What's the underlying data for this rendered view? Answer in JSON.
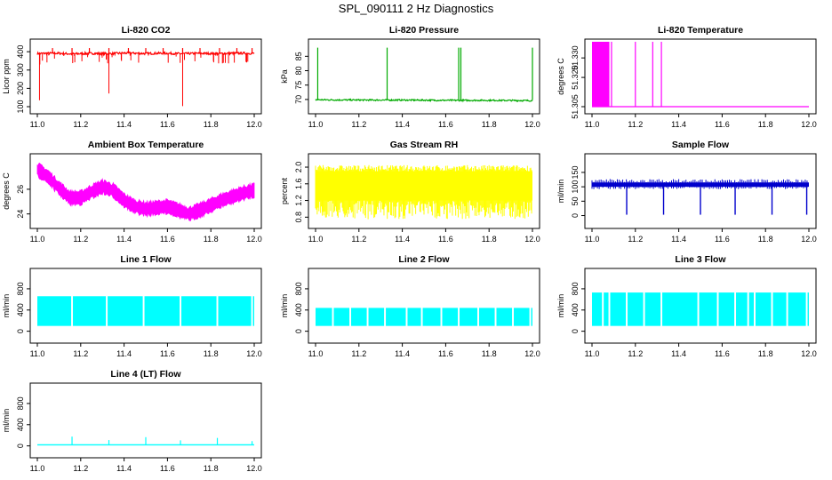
{
  "page": {
    "title": "SPL_090111  2 Hz Diagnostics"
  },
  "chart_data": [
    {
      "id": "co2",
      "type": "line",
      "title": "Li-820 CO2",
      "xlabel": "",
      "ylabel": "Licor ppm",
      "xlim": [
        11.0,
        12.0
      ],
      "ylim": [
        100,
        430
      ],
      "x_ticks": [
        "11.0",
        "11.2",
        "11.4",
        "11.6",
        "11.8",
        "12.0"
      ],
      "y_ticks": [
        100,
        200,
        300,
        400
      ],
      "color": "#ff0000",
      "series": [
        {
          "name": "CO2",
          "x": [
            11.0,
            11.08,
            11.16,
            11.24,
            11.33,
            11.42,
            11.5,
            11.58,
            11.67,
            11.75,
            11.84,
            11.92,
            12.0
          ],
          "y": [
            390,
            392,
            388,
            391,
            389,
            393,
            390,
            392,
            389,
            391,
            390,
            392,
            391
          ]
        }
      ],
      "spikes_up": [
        11.07,
        11.16,
        11.24,
        11.33,
        11.42,
        11.5,
        11.58,
        11.67,
        11.75,
        11.84,
        11.92,
        11.99
      ],
      "spike_up_top": 420,
      "spikes_down": [
        {
          "x": 11.01,
          "y": 135
        },
        {
          "x": 11.33,
          "y": 172
        },
        {
          "x": 11.67,
          "y": 103
        }
      ]
    },
    {
      "id": "pressure",
      "type": "line",
      "title": "Li-820 Pressure",
      "xlabel": "",
      "ylabel": "kPa",
      "xlim": [
        11.0,
        12.0
      ],
      "ylim": [
        67.5,
        88.5
      ],
      "x_ticks": [
        "11.0",
        "11.2",
        "11.4",
        "11.6",
        "11.8",
        "12.0"
      ],
      "y_ticks": [
        70,
        75,
        80,
        85
      ],
      "color": "#00aa00",
      "series": [
        {
          "name": "Pressure",
          "x": [
            11.0,
            11.2,
            11.4,
            11.6,
            11.8,
            12.0
          ],
          "y": [
            69.9,
            69.8,
            69.8,
            69.7,
            69.7,
            69.6
          ]
        }
      ],
      "spikes_up": [
        11.01,
        11.33,
        11.66,
        11.67,
        12.0
      ],
      "spike_up_top": 88
    },
    {
      "id": "temperature",
      "type": "line",
      "title": "Li-820 Temperature",
      "xlabel": "",
      "ylabel": "degrees C",
      "xlim": [
        11.0,
        12.0
      ],
      "ylim": [
        51.305,
        51.336
      ],
      "x_ticks": [
        "11.0",
        "11.2",
        "11.4",
        "11.6",
        "11.8",
        "12.0"
      ],
      "y_ticks": [
        "51.305",
        "51.320",
        "51.330"
      ],
      "y_tick_values": [
        51.305,
        51.32,
        51.33
      ],
      "color": "#ff00ff",
      "baseline": 51.305,
      "dense_region": [
        11.0,
        11.08
      ],
      "spikes_up": [
        11.09,
        11.2,
        11.28,
        11.32
      ],
      "spike_up_top": 51.336
    },
    {
      "id": "box_temp",
      "type": "line",
      "title": "Ambient Box Temperature",
      "xlabel": "",
      "ylabel": "degrees C",
      "xlim": [
        11.0,
        12.0
      ],
      "ylim": [
        23.4,
        28.3
      ],
      "x_ticks": [
        "11.0",
        "11.2",
        "11.4",
        "11.6",
        "11.8",
        "12.0"
      ],
      "y_ticks": [
        24,
        26
      ],
      "color": "#ff00ff",
      "band": 1.0,
      "series": [
        {
          "name": "Box temp",
          "x": [
            11.0,
            11.05,
            11.1,
            11.15,
            11.2,
            11.25,
            11.3,
            11.35,
            11.4,
            11.45,
            11.5,
            11.55,
            11.6,
            11.65,
            11.7,
            11.75,
            11.8,
            11.85,
            11.9,
            11.95,
            12.0
          ],
          "y": [
            27.6,
            27.0,
            26.1,
            25.3,
            25.3,
            25.8,
            26.2,
            25.9,
            25.1,
            24.6,
            24.4,
            24.5,
            24.6,
            24.3,
            24.0,
            24.3,
            24.7,
            25.1,
            25.4,
            25.7,
            25.9
          ]
        }
      ]
    },
    {
      "id": "rh",
      "type": "line",
      "title": "Gas Stream RH",
      "xlabel": "",
      "ylabel": "percent",
      "xlim": [
        11.0,
        12.0
      ],
      "ylim": [
        0.7,
        2.15
      ],
      "x_ticks": [
        "11.0",
        "11.2",
        "11.4",
        "11.6",
        "11.8",
        "12.0"
      ],
      "y_ticks": [
        "0.8",
        "1.2",
        "1.6",
        "2.0"
      ],
      "y_tick_values": [
        0.8,
        1.2,
        1.6,
        2.0
      ],
      "color": "#ffff00",
      "band_low": 1.2,
      "band_high": 1.9,
      "noise_low": 0.75,
      "noise_high": 2.05
    },
    {
      "id": "sample_flow",
      "type": "line",
      "title": "Sample Flow",
      "xlabel": "",
      "ylabel": "ml/min",
      "xlim": [
        11.0,
        12.0
      ],
      "ylim": [
        -20,
        190
      ],
      "x_ticks": [
        "11.0",
        "11.2",
        "11.4",
        "11.6",
        "11.8",
        "12.0"
      ],
      "y_ticks": [
        0,
        50,
        100,
        150
      ],
      "color": "#0000cc",
      "band_low": 100,
      "band_high": 115,
      "dips": [
        11.16,
        11.33,
        11.5,
        11.66,
        11.83,
        11.99
      ],
      "dip_low": 3
    },
    {
      "id": "line1",
      "type": "area",
      "title": "Line 1 Flow",
      "xlabel": "",
      "ylabel": "ml/min",
      "xlim": [
        11.0,
        12.0
      ],
      "ylim": [
        -90,
        1050
      ],
      "x_ticks": [
        "11.0",
        "11.2",
        "11.4",
        "11.6",
        "11.8",
        "12.0"
      ],
      "y_ticks": [
        0,
        400,
        800
      ],
      "color": "#00ffff",
      "band_low": 100,
      "band_high": 660,
      "gaps": [
        11.16,
        11.32,
        11.49,
        11.66,
        11.83,
        11.99
      ]
    },
    {
      "id": "line2",
      "type": "area",
      "title": "Line 2 Flow",
      "xlabel": "",
      "ylabel": "ml/min",
      "xlim": [
        11.0,
        12.0
      ],
      "ylim": [
        -90,
        1050
      ],
      "x_ticks": [
        "11.0",
        "11.2",
        "11.4",
        "11.6",
        "11.8",
        "12.0"
      ],
      "y_ticks": [
        0,
        400,
        800
      ],
      "color": "#00ffff",
      "band_low": 100,
      "band_high": 440,
      "gaps": [
        11.08,
        11.16,
        11.24,
        11.32,
        11.42,
        11.49,
        11.58,
        11.66,
        11.75,
        11.83,
        11.91,
        11.99
      ]
    },
    {
      "id": "line3",
      "type": "area",
      "title": "Line 3 Flow",
      "xlabel": "",
      "ylabel": "ml/min",
      "xlim": [
        11.0,
        12.0
      ],
      "ylim": [
        -90,
        1050
      ],
      "x_ticks": [
        "11.0",
        "11.2",
        "11.4",
        "11.6",
        "11.8",
        "12.0"
      ],
      "y_ticks": [
        0,
        400,
        800
      ],
      "color": "#00ffff",
      "band_low": 100,
      "band_high": 730,
      "gaps": [
        11.05,
        11.08,
        11.16,
        11.24,
        11.32,
        11.49,
        11.58,
        11.66,
        11.72,
        11.75,
        11.83,
        11.9,
        11.99
      ]
    },
    {
      "id": "line4",
      "type": "line",
      "title": "Line 4 (LT) Flow",
      "xlabel": "",
      "ylabel": "ml/min",
      "xlim": [
        11.0,
        12.0
      ],
      "ylim": [
        -90,
        1050
      ],
      "x_ticks": [
        "11.0",
        "11.2",
        "11.4",
        "11.6",
        "11.8",
        "12.0"
      ],
      "y_ticks": [
        0,
        400,
        800
      ],
      "color": "#00ffff",
      "baseline": 20,
      "spikes": [
        {
          "x": 11.16,
          "y": 175
        },
        {
          "x": 11.33,
          "y": 110
        },
        {
          "x": 11.5,
          "y": 165
        },
        {
          "x": 11.66,
          "y": 105
        },
        {
          "x": 11.83,
          "y": 150
        },
        {
          "x": 11.99,
          "y": 90
        }
      ]
    }
  ]
}
